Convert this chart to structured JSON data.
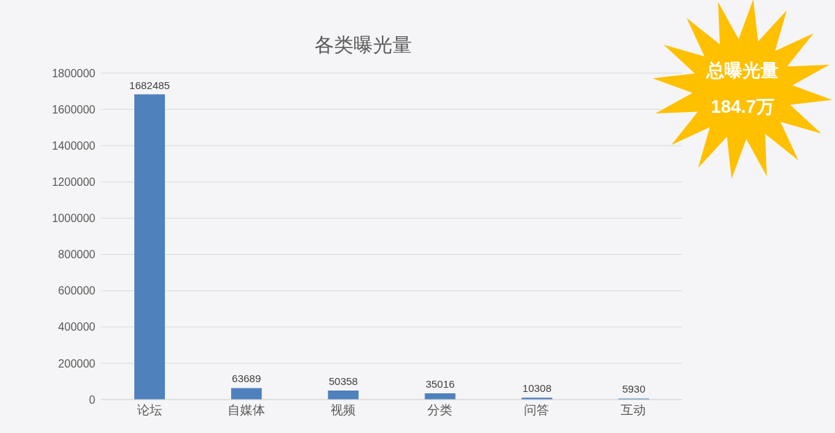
{
  "chart_data": {
    "type": "bar",
    "title": "各类曝光量",
    "categories": [
      "论坛",
      "自媒体",
      "视频",
      "分类",
      "问答",
      "互动"
    ],
    "values": [
      1682485,
      63689,
      50358,
      35016,
      10308,
      5930
    ],
    "color": "#4f81bd",
    "ylim": [
      0,
      1800000
    ],
    "yticks": [
      0,
      200000,
      400000,
      600000,
      800000,
      1000000,
      1200000,
      1400000,
      1600000,
      1800000
    ],
    "grid": "y",
    "data_labels": true,
    "annotations": [
      "总曝光量",
      "184.7万"
    ]
  }
}
